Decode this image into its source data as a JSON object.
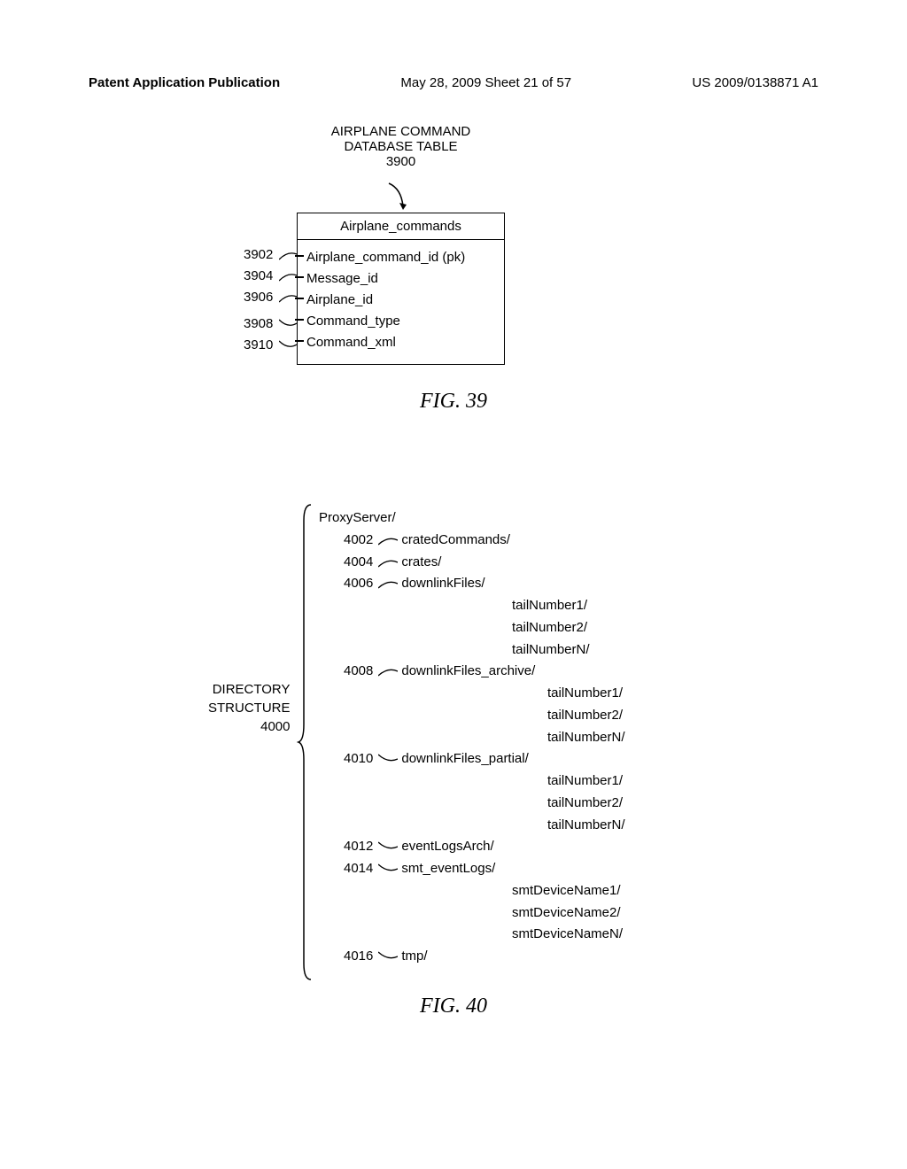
{
  "header": {
    "left": "Patent Application Publication",
    "center": "May 28, 2009  Sheet 21 of 57",
    "right": "US 2009/0138871 A1"
  },
  "fig39": {
    "title_line1": "AIRPLANE COMMAND",
    "title_line2": "DATABASE TABLE",
    "title_ref": "3900",
    "table_name": "Airplane_commands",
    "fields": [
      {
        "ref": "3902",
        "name": "Airplane_command_id (pk)"
      },
      {
        "ref": "3904",
        "name": "Message_id"
      },
      {
        "ref": "3906",
        "name": "Airplane_id"
      },
      {
        "ref": "3908",
        "name": "Command_type"
      },
      {
        "ref": "3910",
        "name": "Command_xml"
      }
    ],
    "caption": "FIG. 39"
  },
  "fig40": {
    "label_line1": "DIRECTORY",
    "label_line2": "STRUCTURE",
    "label_ref": "4000",
    "root": "ProxyServer/",
    "items": [
      {
        "ref": "4002",
        "name": "cratedCommands/",
        "children": []
      },
      {
        "ref": "4004",
        "name": "crates/",
        "children": []
      },
      {
        "ref": "4006",
        "name": "downlinkFiles/",
        "children": [
          "tailNumber1/",
          "tailNumber2/",
          "tailNumberN/"
        ],
        "child_indent": "l2"
      },
      {
        "ref": "4008",
        "name": "downlinkFiles_archive/",
        "children": [
          "tailNumber1/",
          "tailNumber2/",
          "tailNumberN/"
        ],
        "child_indent": "l2b"
      },
      {
        "ref": "4010",
        "name": "downlinkFiles_partial/",
        "children": [
          "tailNumber1/",
          "tailNumber2/",
          "tailNumberN/"
        ],
        "child_indent": "l2b"
      },
      {
        "ref": "4012",
        "name": "eventLogsArch/",
        "children": []
      },
      {
        "ref": "4014",
        "name": "smt_eventLogs/",
        "children": [
          "smtDeviceName1/",
          "smtDeviceName2/",
          "smtDeviceNameN/"
        ],
        "child_indent": "l2"
      },
      {
        "ref": "4016",
        "name": "tmp/",
        "children": []
      }
    ],
    "caption": "FIG. 40"
  },
  "style": {
    "stroke": "#000000",
    "background": "#ffffff",
    "font_size_body": 15,
    "font_size_caption": 24
  }
}
